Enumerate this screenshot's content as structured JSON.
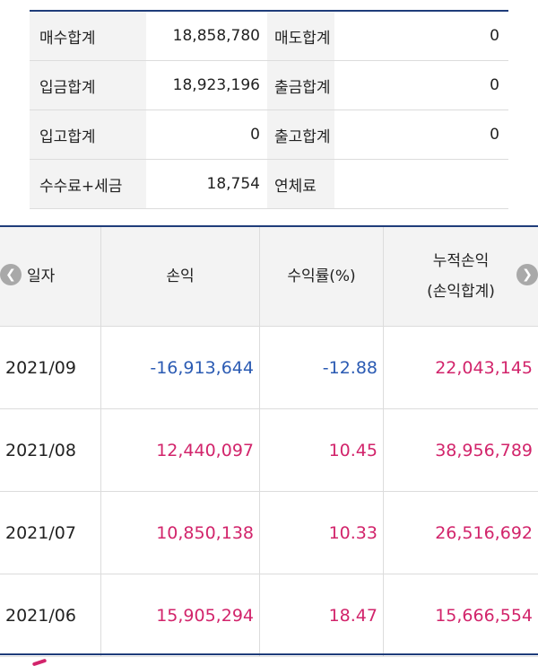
{
  "summary": {
    "rows": [
      {
        "label1": "매수합계",
        "value1": "18,858,780",
        "label2": "매도합계",
        "value2": "0"
      },
      {
        "label1": "입금합계",
        "value1": "18,923,196",
        "label2": "출금합계",
        "value2": "0"
      },
      {
        "label1": "입고합계",
        "value1": "0",
        "label2": "출고합계",
        "value2": "0"
      },
      {
        "label1": "수수료+세금",
        "value1": "18,754",
        "label2": "연체료",
        "value2": ""
      }
    ]
  },
  "table": {
    "headers": {
      "date": "일자",
      "profit": "손익",
      "rate": "수익률(%)",
      "cumulative_line1": "누적손익",
      "cumulative_line2": "(손익합계)"
    },
    "nav": {
      "prev_icon": "chevron-left-icon",
      "next_icon": "chevron-right-icon"
    },
    "rows": [
      {
        "date": "2021/09",
        "profit": "-16,913,644",
        "rate": "-12.88",
        "cumulative": "22,043,145",
        "sign": "neg"
      },
      {
        "date": "2021/08",
        "profit": "12,440,097",
        "rate": "10.45",
        "cumulative": "38,956,789",
        "sign": "pos"
      },
      {
        "date": "2021/07",
        "profit": "10,850,138",
        "rate": "10.33",
        "cumulative": "26,516,692",
        "sign": "pos"
      },
      {
        "date": "2021/06",
        "profit": "15,905,294",
        "rate": "18.47",
        "cumulative": "15,666,554",
        "sign": "pos"
      }
    ]
  },
  "colors": {
    "negative": "#2b5bb3",
    "positive": "#d2246b",
    "header_border": "#1f3d7a"
  }
}
